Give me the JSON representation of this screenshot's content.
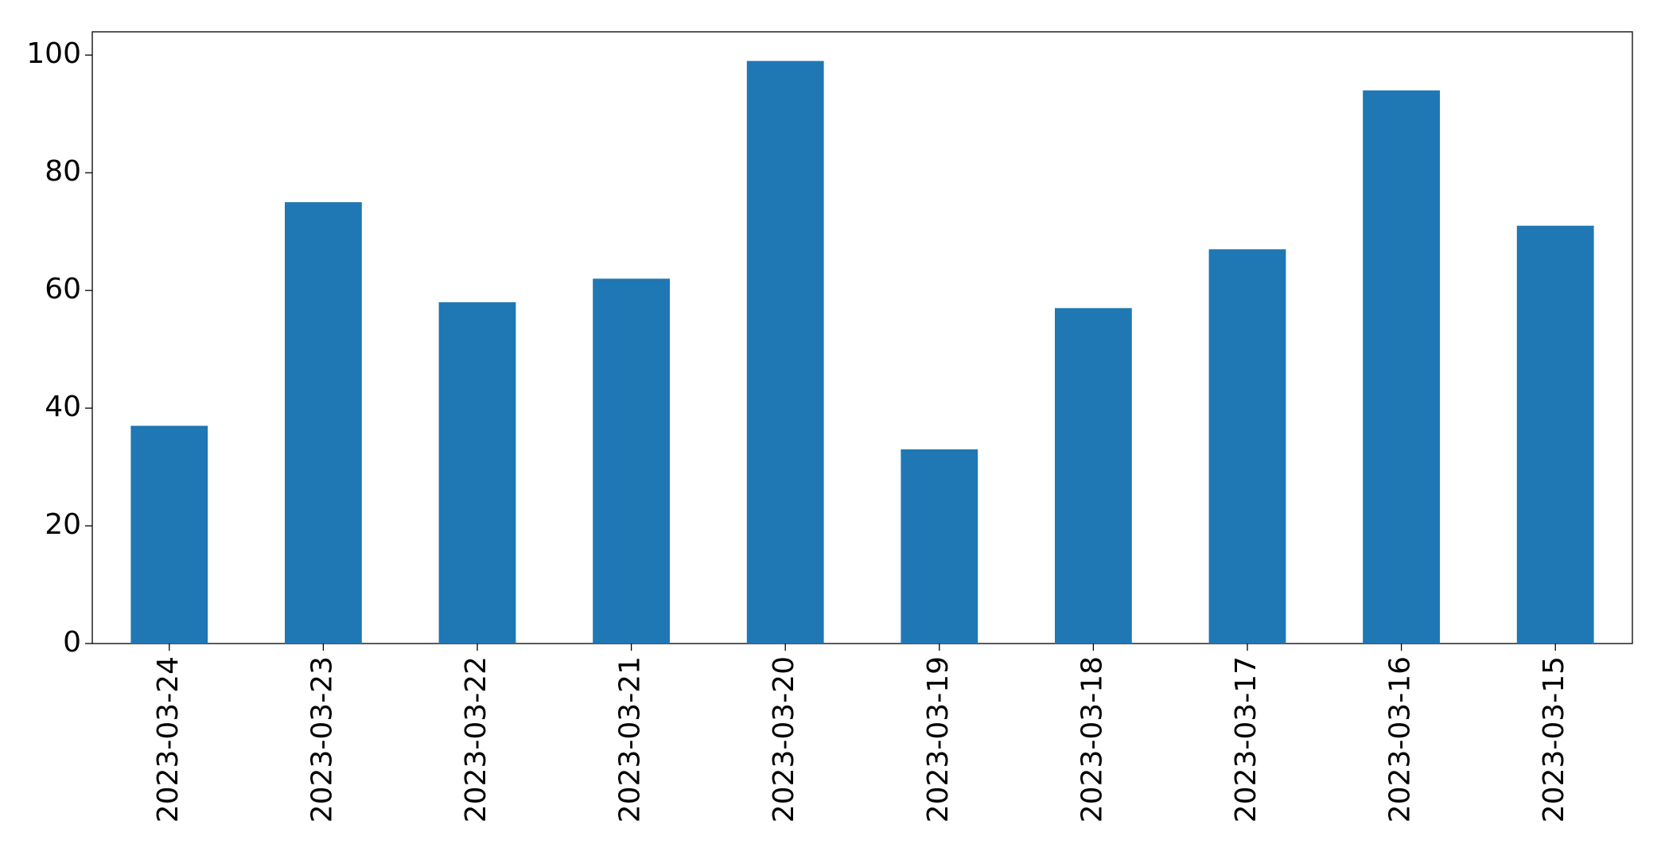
{
  "chart_data": {
    "type": "bar",
    "categories": [
      "2023-03-24",
      "2023-03-23",
      "2023-03-22",
      "2023-03-21",
      "2023-03-20",
      "2023-03-19",
      "2023-03-18",
      "2023-03-17",
      "2023-03-16",
      "2023-03-15"
    ],
    "values": [
      37,
      75,
      58,
      62,
      99,
      33,
      57,
      67,
      94,
      71
    ],
    "color": "#1f77b4",
    "ylim": [
      0,
      103.95
    ],
    "yticks": [
      0,
      20,
      40,
      60,
      80,
      100
    ],
    "grid": false
  }
}
